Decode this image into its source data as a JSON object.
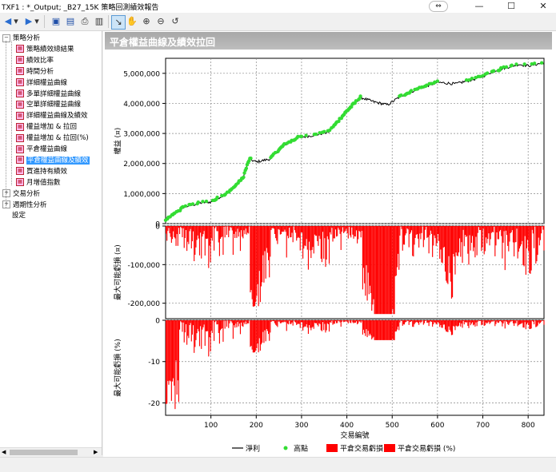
{
  "window": {
    "title": "TXF1 : *_Output; _B27_15K 策略回測績效報告",
    "restore_icon": "restore-pill-icon",
    "minimize_icon": "minimize-icon",
    "maximize_icon": "maximize-icon",
    "close_icon": "close-icon"
  },
  "toolbar": {
    "buttons": [
      {
        "name": "back-arrow-icon",
        "glyph": "◆"
      },
      {
        "name": "back-dropdown-icon",
        "glyph": "▾"
      },
      {
        "name": "forward-arrow-icon",
        "glyph": "◇"
      },
      {
        "name": "forward-dropdown-icon",
        "glyph": "▾"
      },
      {
        "name": "save-icon",
        "glyph": "▣"
      },
      {
        "name": "export-icon",
        "glyph": "▤"
      },
      {
        "name": "print-icon",
        "glyph": "⎙"
      },
      {
        "name": "report-icon",
        "glyph": "▥"
      },
      {
        "name": "pointer-icon",
        "glyph": "↖"
      },
      {
        "name": "pan-hand-icon",
        "glyph": "✋"
      },
      {
        "name": "zoom-in-icon",
        "glyph": "⊕"
      },
      {
        "name": "zoom-out-icon",
        "glyph": "⊖"
      },
      {
        "name": "reset-zoom-icon",
        "glyph": "↺"
      }
    ]
  },
  "tree": {
    "items": [
      {
        "label": "策略分析",
        "level": 0,
        "expander": "−"
      },
      {
        "label": "策略績效總結果",
        "level": 1
      },
      {
        "label": "績效比率",
        "level": 1
      },
      {
        "label": "時間分析",
        "level": 1
      },
      {
        "label": "詳細權益曲線",
        "level": 1
      },
      {
        "label": "多單詳細權益曲線",
        "level": 1
      },
      {
        "label": "空單詳細權益曲線",
        "level": 1
      },
      {
        "label": "詳細權益曲線及績效",
        "level": 1
      },
      {
        "label": "權益增加 & 拉回",
        "level": 1
      },
      {
        "label": "權益增加 & 拉回(%)",
        "level": 1
      },
      {
        "label": "平倉權益曲線",
        "level": 1
      },
      {
        "label": "平倉權益曲線及績效",
        "level": 1,
        "selected": true
      },
      {
        "label": "買進持有績效",
        "level": 1
      },
      {
        "label": "月增值指數",
        "level": 1
      },
      {
        "label": "交易分析",
        "level": 0,
        "expander": "+"
      },
      {
        "label": "週期性分析",
        "level": 0,
        "expander": "+"
      },
      {
        "label": "設定",
        "level": 0
      }
    ]
  },
  "panel": {
    "title": "平倉權益曲線及績效拉回"
  },
  "chart_data": {
    "type": "line",
    "title": "平倉權益曲線及績效拉回",
    "xlabel": "交易編號",
    "xlim": [
      0,
      835
    ],
    "x_ticks": [
      "100",
      "200",
      "300",
      "400",
      "500",
      "600",
      "700",
      "800"
    ],
    "legend_position": "bottom",
    "legend": [
      {
        "label": "淨利",
        "color": "#000000",
        "kind": "line"
      },
      {
        "label": "高點",
        "color": "#33dd33",
        "kind": "dot"
      },
      {
        "label": "平倉交易虧損",
        "color": "#ff0000",
        "kind": "box"
      },
      {
        "label": "平倉交易虧損 (%)",
        "color": "#ff0000",
        "kind": "box"
      }
    ],
    "panes": [
      {
        "ylabel": "權益 (¤)",
        "ylim": [
          0,
          5500000
        ],
        "y_ticks": [
          "0",
          "1,000,000",
          "2,000,000",
          "3,000,000",
          "4,000,000",
          "5,000,000"
        ],
        "y_tick_values": [
          0,
          1000000,
          2000000,
          3000000,
          4000000,
          5000000
        ],
        "series_x": [
          0,
          40,
          80,
          100,
          140,
          170,
          185,
          200,
          230,
          260,
          290,
          330,
          360,
          400,
          430,
          460,
          490,
          520,
          560,
          600,
          640,
          680,
          700,
          720,
          740,
          780,
          800,
          835
        ],
        "series_y": [
          100000,
          550000,
          700000,
          720000,
          1050000,
          1500000,
          2150000,
          2050000,
          2150000,
          2600000,
          2850000,
          2950000,
          3050000,
          3750000,
          4200000,
          4050000,
          3950000,
          4250000,
          4500000,
          4700000,
          4650000,
          4800000,
          4900000,
          5050000,
          5150000,
          5300000,
          5250000,
          5350000
        ]
      },
      {
        "ylabel": "最大可能虧損 (¤)",
        "ylim": [
          -240000,
          0
        ],
        "y_ticks": [
          "0",
          "-100,000",
          "-200,000"
        ],
        "y_tick_values": [
          0,
          -100000,
          -200000
        ]
      },
      {
        "ylabel": "最大可能虧損 (%)",
        "ylim": [
          -23,
          0
        ],
        "y_ticks": [
          "0",
          "-10",
          "-20"
        ],
        "y_tick_values": [
          0,
          -10,
          -20
        ]
      }
    ]
  }
}
